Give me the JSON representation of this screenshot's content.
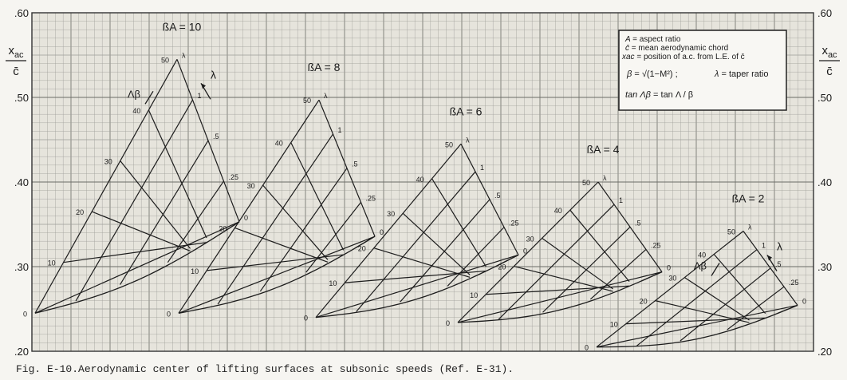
{
  "caption": "Fig. E-10.Aerodynamic center of lifting surfaces at subsonic speeds (Ref. E-31).",
  "colors": {
    "paper": "#e6e4dc",
    "grid_minor": "#9d9d98",
    "grid_major": "#6b6b66",
    "ink": "#1c1c1c"
  },
  "chart_data": {
    "type": "line",
    "ylabel": "xac / c̄",
    "ylabel_parts": {
      "top": "x",
      "sub": "ac",
      "bottom": "c̄"
    },
    "ylim": [
      0.2,
      0.6
    ],
    "y_ticks": [
      ".60",
      ".50",
      ".40",
      ".30",
      ".20"
    ],
    "y_tick_values": [
      0.6,
      0.5,
      0.4,
      0.3,
      0.2
    ],
    "grid": true,
    "legend_position": "top-right",
    "legend": [
      {
        "key": "A",
        "text": "= aspect ratio"
      },
      {
        "key": "c̄",
        "text": "= mean aerodynamic chord"
      },
      {
        "key": "xac",
        "text": "= position of a.c. from L.E. of c̄"
      },
      {
        "key": "β",
        "text": "= √(1−M²) ;"
      },
      {
        "key": "λ",
        "text": "= taper ratio"
      },
      {
        "key": "tan Λβ",
        "text": "= tan Λ / β"
      }
    ],
    "families": [
      {
        "label": "ßA = 10",
        "base": 0.245,
        "peak": 0.545,
        "sweep_ticks": [
          "0",
          "10",
          "20",
          "30",
          "40",
          "50"
        ],
        "taper_ticks": [
          "λ",
          "1",
          ".5",
          ".25",
          "0"
        ],
        "lambda_axis_label": "λ",
        "sweep_axis_label": "Λβ"
      },
      {
        "label": "ßA = 8",
        "base": 0.245,
        "peak": 0.497,
        "sweep_ticks": [
          "0",
          "10",
          "20",
          "30",
          "40",
          "50"
        ],
        "taper_ticks": [
          "λ",
          "1",
          ".5",
          ".25",
          "0"
        ]
      },
      {
        "label": "ßA = 6",
        "base": 0.24,
        "peak": 0.445,
        "sweep_ticks": [
          "0",
          "10",
          "20",
          "30",
          "40",
          "50"
        ],
        "taper_ticks": [
          "λ",
          "1",
          ".5",
          ".25",
          "0"
        ]
      },
      {
        "label": "ßA = 4",
        "base": 0.234,
        "peak": 0.4,
        "sweep_ticks": [
          "0",
          "10",
          "20",
          "30",
          "40",
          "50"
        ],
        "taper_ticks": [
          "λ",
          "1",
          ".5",
          ".25",
          "0"
        ]
      },
      {
        "label": "ßA = 2",
        "base": 0.205,
        "peak": 0.342,
        "sweep_ticks": [
          "0",
          "10",
          "20",
          "30",
          "40",
          "50"
        ],
        "taper_ticks": [
          "λ",
          "1",
          ".5",
          ".25",
          "0"
        ],
        "lambda_axis_label": "λ",
        "sweep_axis_label": "Λβ"
      }
    ]
  }
}
